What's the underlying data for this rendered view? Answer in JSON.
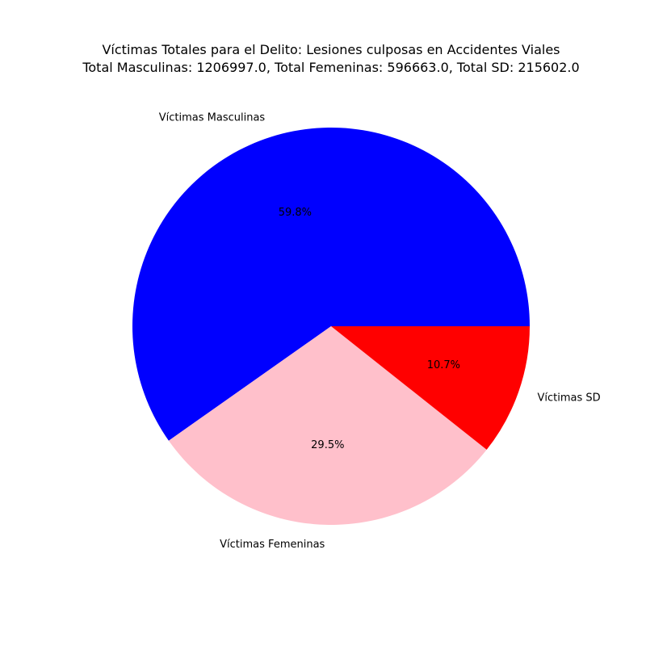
{
  "chart_data": {
    "type": "pie",
    "title": "Víctimas Totales para el Delito: Lesiones culposas en Accidentes Viales",
    "subtitle": "Total Masculinas: 1206997.0, Total Femeninas: 596663.0, Total SD: 215602.0",
    "slices": [
      {
        "label": "Víctimas Masculinas",
        "value": 1206997.0,
        "percent_label": "59.8%",
        "color": "#0000ff"
      },
      {
        "label": "Víctimas Femeninas",
        "value": 596663.0,
        "percent_label": "29.5%",
        "color": "#ffc0cb"
      },
      {
        "label": "Víctimas SD",
        "value": 215602.0,
        "percent_label": "10.7%",
        "color": "#ff0000"
      }
    ],
    "start_angle_deg": 0,
    "direction": "counterclockwise"
  }
}
